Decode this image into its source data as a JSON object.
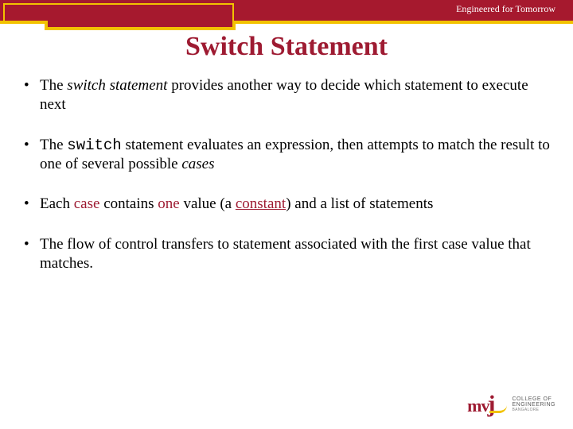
{
  "colors": {
    "brand_red": "#a6192e",
    "title_red": "#9e1b32",
    "accent_yellow": "#f2c200",
    "background": "#ffffff",
    "text": "#000000",
    "logo_text_gray": "#5b5b5b"
  },
  "typography": {
    "title_fontsize": 34,
    "body_fontsize": 19,
    "tagline_fontsize": 12
  },
  "header": {
    "tagline": "Engineered for Tomorrow",
    "title": "Switch Statement"
  },
  "bullets": [
    {
      "segments": [
        {
          "text": "The ",
          "style": ""
        },
        {
          "text": "switch statement",
          "style": "kw-italic"
        },
        {
          "text": " provides another way to decide which statement to execute next",
          "style": ""
        }
      ]
    },
    {
      "segments": [
        {
          "text": "The ",
          "style": ""
        },
        {
          "text": "switch",
          "style": "kw-mono"
        },
        {
          "text": " statement evaluates an expression, then attempts to match the result to one of several possible ",
          "style": ""
        },
        {
          "text": "cases",
          "style": "kw-italic"
        }
      ]
    },
    {
      "segments": [
        {
          "text": "Each ",
          "style": ""
        },
        {
          "text": "case",
          "style": "kw-red"
        },
        {
          "text": " contains ",
          "style": ""
        },
        {
          "text": "one",
          "style": "kw-red"
        },
        {
          "text": " value (a ",
          "style": ""
        },
        {
          "text": "constant",
          "style": "kw-red-under"
        },
        {
          "text": ") and a list of statements",
          "style": ""
        }
      ]
    },
    {
      "segments": [
        {
          "text": "The flow of control transfers to statement associated with the first case value that matches.",
          "style": ""
        }
      ]
    }
  ],
  "logo": {
    "mark_m": "m",
    "mark_v": "v",
    "mark_j": "j",
    "line1": "COLLEGE OF",
    "line2": "ENGINEERING",
    "line3": "BANGALORE"
  }
}
